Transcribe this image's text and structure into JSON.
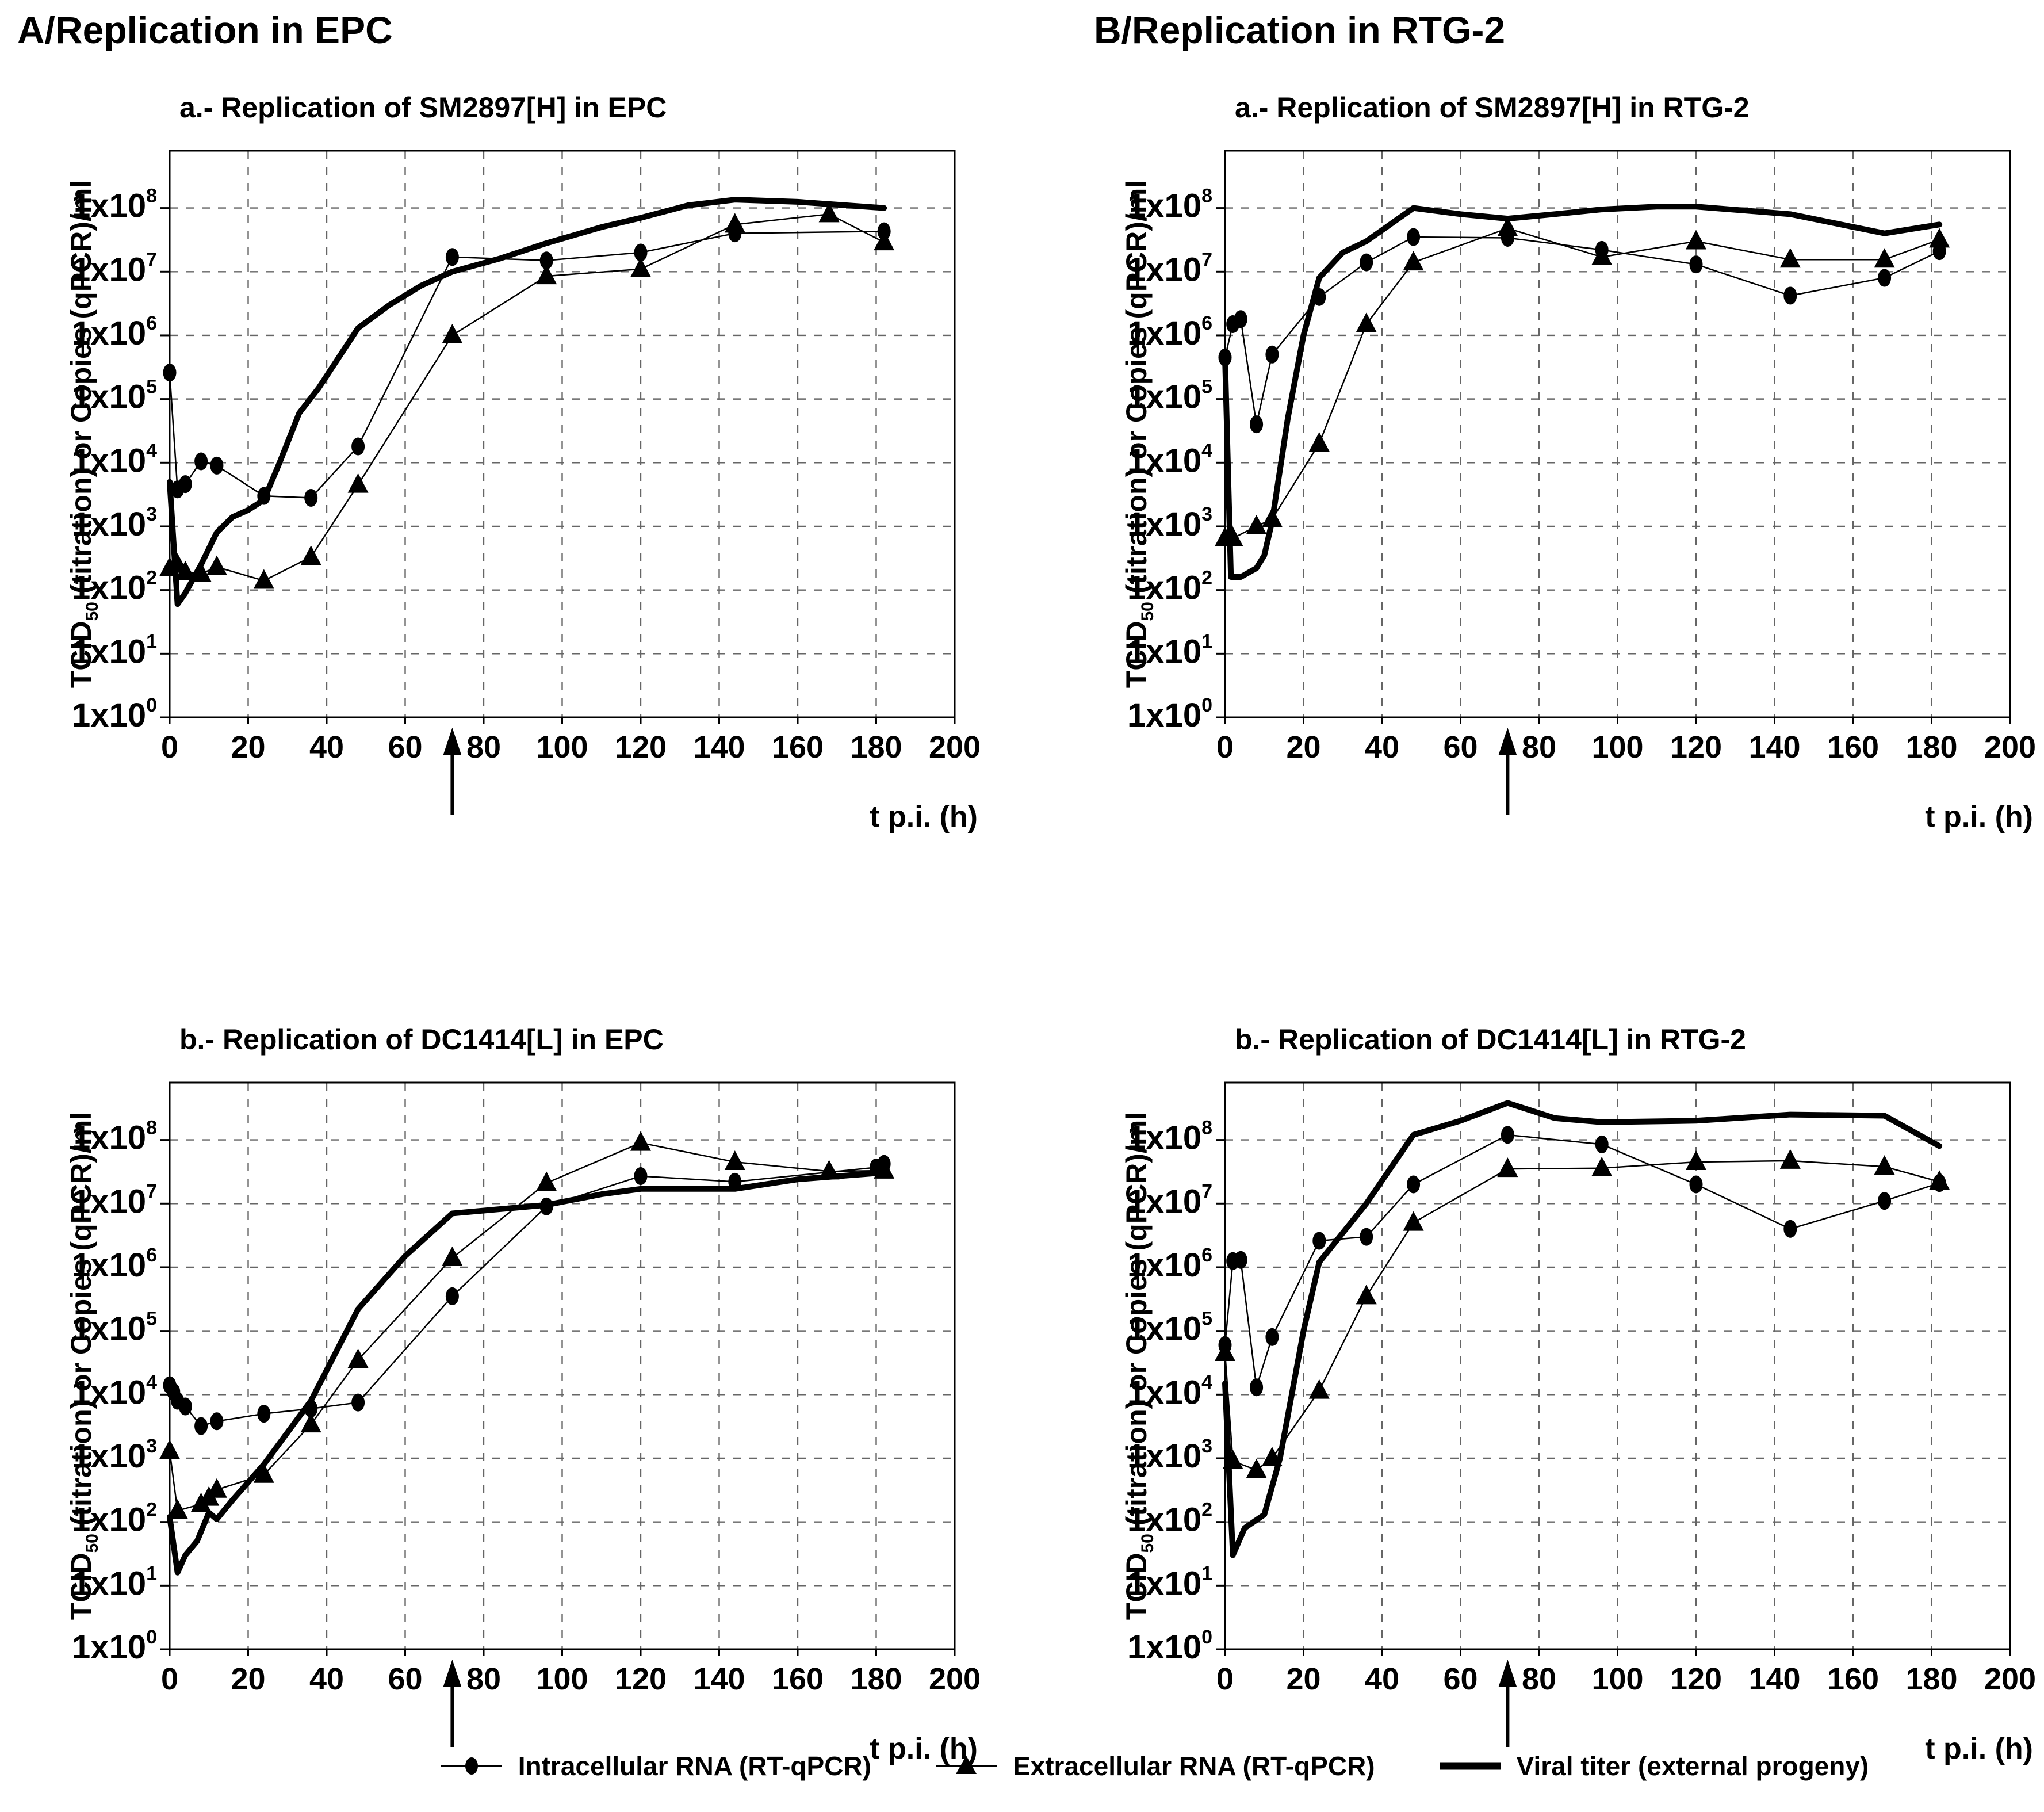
{
  "sections": [
    {
      "title": "A/Replication in EPC"
    },
    {
      "title": "B/Replication in RTG-2"
    }
  ],
  "axis": {
    "xlabel": "t p.i. (h)",
    "ylabel_pre": "TCID",
    "ylabel_sub": "50",
    "ylabel_post": " (titration) or Copies (qPCR)/ml",
    "x_min": 0,
    "x_max": 200,
    "x_tick_step": 20,
    "y_tick_prefix": "1x10",
    "y_exponent_min": 0,
    "y_exponent_max": 8,
    "y_top_exponent": 8.9,
    "grid": true,
    "arrow_x": 72
  },
  "legend": {
    "items": [
      {
        "label": "Intracellular RNA (RT-qPCR)",
        "marker": "circle"
      },
      {
        "label": "Extracellular RNA (RT-qPCR)",
        "marker": "triangle"
      },
      {
        "label": "Viral titer (external progeny)",
        "marker": "thick-line"
      }
    ]
  },
  "chart_data": [
    {
      "type": "line",
      "title": "a.- Replication of SM2897[H] in EPC",
      "xlabel": "t p.i. (h)",
      "ylabel": "TCID50 (titration) or Copies (qPCR)/ml",
      "xlim": [
        0,
        200
      ],
      "ylog_range": [
        1,
        1000000000.0
      ],
      "arrow_x": 72,
      "series": [
        {
          "name": "Intracellular RNA (RT-qPCR)",
          "marker": "circle",
          "thick": false,
          "x": [
            0,
            2,
            4,
            8,
            12,
            24,
            36,
            48,
            72,
            96,
            120,
            144,
            182
          ],
          "y": [
            260000.0,
            3800.0,
            4600.0,
            10500.0,
            9000.0,
            3000.0,
            2800.0,
            18000.0,
            17000000.0,
            15000000.0,
            20000000.0,
            40000000.0,
            43000000.0
          ]
        },
        {
          "name": "Extracellular RNA (RT-qPCR)",
          "marker": "triangle",
          "thick": false,
          "x": [
            0,
            2,
            4,
            8,
            12,
            24,
            36,
            48,
            72,
            96,
            120,
            144,
            168,
            182
          ],
          "y": [
            220.0,
            250.0,
            190.0,
            180.0,
            230.0,
            140.0,
            330.0,
            4500.0,
            1000000.0,
            8500000.0,
            11000000.0,
            55000000.0,
            80000000.0,
            29000000.0
          ]
        },
        {
          "name": "Viral titer (external progeny)",
          "marker": "none",
          "thick": true,
          "x": [
            0,
            2,
            4,
            8,
            12,
            16,
            20,
            24,
            28,
            33,
            38,
            48,
            56,
            64,
            72,
            84,
            96,
            110,
            120,
            132,
            144,
            160,
            182
          ],
          "y": [
            5000.0,
            60.0,
            90.0,
            250.0,
            800.0,
            1400.0,
            1800.0,
            2600.0,
            10000.0,
            60000.0,
            150000.0,
            1300000.0,
            3000000.0,
            6000000.0,
            10000000.0,
            16000000.0,
            28000000.0,
            50000000.0,
            70000000.0,
            110000000.0,
            135000000.0,
            125000000.0,
            100000000.0
          ]
        }
      ]
    },
    {
      "type": "line",
      "title": "a.- Replication of SM2897[H] in RTG-2",
      "xlabel": "t p.i. (h)",
      "ylabel": "TCID50 (titration) or Copies (qPCR)/ml",
      "xlim": [
        0,
        200
      ],
      "ylog_range": [
        1,
        1000000000.0
      ],
      "arrow_x": 72,
      "series": [
        {
          "name": "Intracellular RNA (RT-qPCR)",
          "marker": "circle",
          "thick": false,
          "x": [
            0,
            2,
            4,
            8,
            12,
            24,
            36,
            48,
            72,
            96,
            120,
            144,
            168,
            182
          ],
          "y": [
            450000.0,
            1500000.0,
            1800000.0,
            40000.0,
            500000.0,
            4000000.0,
            14000000.0,
            35000000.0,
            34000000.0,
            22000000.0,
            13000000.0,
            4200000.0,
            8000000.0,
            21000000.0
          ]
        },
        {
          "name": "Extracellular RNA (RT-qPCR)",
          "marker": "triangle",
          "thick": false,
          "x": [
            0,
            2,
            8,
            12,
            24,
            36,
            48,
            72,
            96,
            120,
            144,
            168,
            182
          ],
          "y": [
            650.0,
            650.0,
            1000.0,
            1300.0,
            20000.0,
            1500000.0,
            14000000.0,
            48000000.0,
            17000000.0,
            30000000.0,
            15500000.0,
            15500000.0,
            32000000.0
          ]
        },
        {
          "name": "Viral titer (external progeny)",
          "marker": "none",
          "thick": true,
          "x": [
            0,
            1.5,
            4,
            8,
            10,
            12,
            16,
            20,
            24,
            30,
            36,
            48,
            60,
            72,
            84,
            96,
            110,
            120,
            144,
            168,
            182
          ],
          "y": [
            450000.0,
            160.0,
            160.0,
            220.0,
            350.0,
            1200.0,
            50000.0,
            1000000.0,
            8000000.0,
            20000000.0,
            30000000.0,
            100000000.0,
            80000000.0,
            68000000.0,
            80000000.0,
            95000000.0,
            105000000.0,
            105000000.0,
            80000000.0,
            40000000.0,
            55000000.0
          ]
        }
      ]
    },
    {
      "type": "line",
      "title": "b.- Replication of DC1414[L] in EPC",
      "xlabel": "t p.i. (h)",
      "ylabel": "TCID50 (titration) or Copies (qPCR)/ml",
      "xlim": [
        0,
        200
      ],
      "ylog_range": [
        1,
        1000000000.0
      ],
      "arrow_x": 72,
      "series": [
        {
          "name": "Intracellular RNA (RT-qPCR)",
          "marker": "circle",
          "thick": false,
          "x": [
            0,
            1,
            2,
            4,
            8,
            12,
            24,
            36,
            48,
            72,
            96,
            120,
            144,
            180,
            182
          ],
          "y": [
            14000.0,
            11000.0,
            8000.0,
            6500.0,
            3200.0,
            3800.0,
            5000.0,
            6000.0,
            7500.0,
            350000.0,
            9000000.0,
            27000000.0,
            22000000.0,
            37000000.0,
            42000000.0
          ]
        },
        {
          "name": "Extracellular RNA (RT-qPCR)",
          "marker": "triangle",
          "thick": false,
          "x": [
            0,
            2,
            8,
            10,
            12,
            24,
            36,
            48,
            72,
            96,
            120,
            144,
            168,
            182
          ],
          "y": [
            1300.0,
            150.0,
            190.0,
            240.0,
            320.0,
            550.0,
            3400.0,
            35000.0,
            1400000.0,
            21000000.0,
            90000000.0,
            45000000.0,
            32000000.0,
            33000000.0
          ]
        },
        {
          "name": "Viral titer (external progeny)",
          "marker": "none",
          "thick": true,
          "x": [
            0,
            2,
            4,
            7,
            10,
            12,
            16,
            24,
            36,
            48,
            60,
            72,
            96,
            110,
            120,
            144,
            160,
            180
          ],
          "y": [
            120.0,
            16.0,
            30.0,
            50.0,
            140.0,
            110.0,
            220.0,
            800.0,
            8000.0,
            220000.0,
            1500000.0,
            7000000.0,
            9500000.0,
            14000000.0,
            17000000.0,
            17000000.0,
            24000000.0,
            30000000.0
          ]
        }
      ]
    },
    {
      "type": "line",
      "title": "b.- Replication of DC1414[L] in RTG-2",
      "xlabel": "t p.i. (h)",
      "ylabel": "TCID50 (titration) or Copies (qPCR)/ml",
      "xlim": [
        0,
        200
      ],
      "ylog_range": [
        1,
        1000000000.0
      ],
      "arrow_x": 72,
      "series": [
        {
          "name": "Intracellular RNA (RT-qPCR)",
          "marker": "circle",
          "thick": false,
          "x": [
            0,
            2,
            4,
            8,
            12,
            24,
            36,
            48,
            72,
            96,
            120,
            144,
            168,
            182
          ],
          "y": [
            60000.0,
            1250000.0,
            1300000.0,
            13000.0,
            80000.0,
            2600000.0,
            3000000.0,
            20000000.0,
            120000000.0,
            85000000.0,
            20000000.0,
            4000000.0,
            11000000.0,
            21000000.0
          ]
        },
        {
          "name": "Extracellular RNA (RT-qPCR)",
          "marker": "triangle",
          "thick": false,
          "x": [
            0,
            2,
            8,
            12,
            24,
            36,
            48,
            72,
            96,
            120,
            144,
            168,
            182
          ],
          "y": [
            45000.0,
            900.0,
            650.0,
            1000.0,
            11500.0,
            350000.0,
            5000000.0,
            35000000.0,
            36000000.0,
            45000000.0,
            47000000.0,
            38000000.0,
            22000000.0
          ]
        },
        {
          "name": "Viral titer (external progeny)",
          "marker": "none",
          "thick": true,
          "x": [
            0,
            2,
            5,
            10,
            14,
            17,
            20,
            24,
            36,
            48,
            60,
            72,
            84,
            96,
            120,
            144,
            168,
            182
          ],
          "y": [
            15000.0,
            30.0,
            80.0,
            130.0,
            1000.0,
            10000.0,
            100000.0,
            1200000.0,
            10000000.0,
            120000000.0,
            200000000.0,
            380000000.0,
            220000000.0,
            190000000.0,
            200000000.0,
            250000000.0,
            240000000.0,
            80000000.0
          ]
        }
      ]
    }
  ]
}
